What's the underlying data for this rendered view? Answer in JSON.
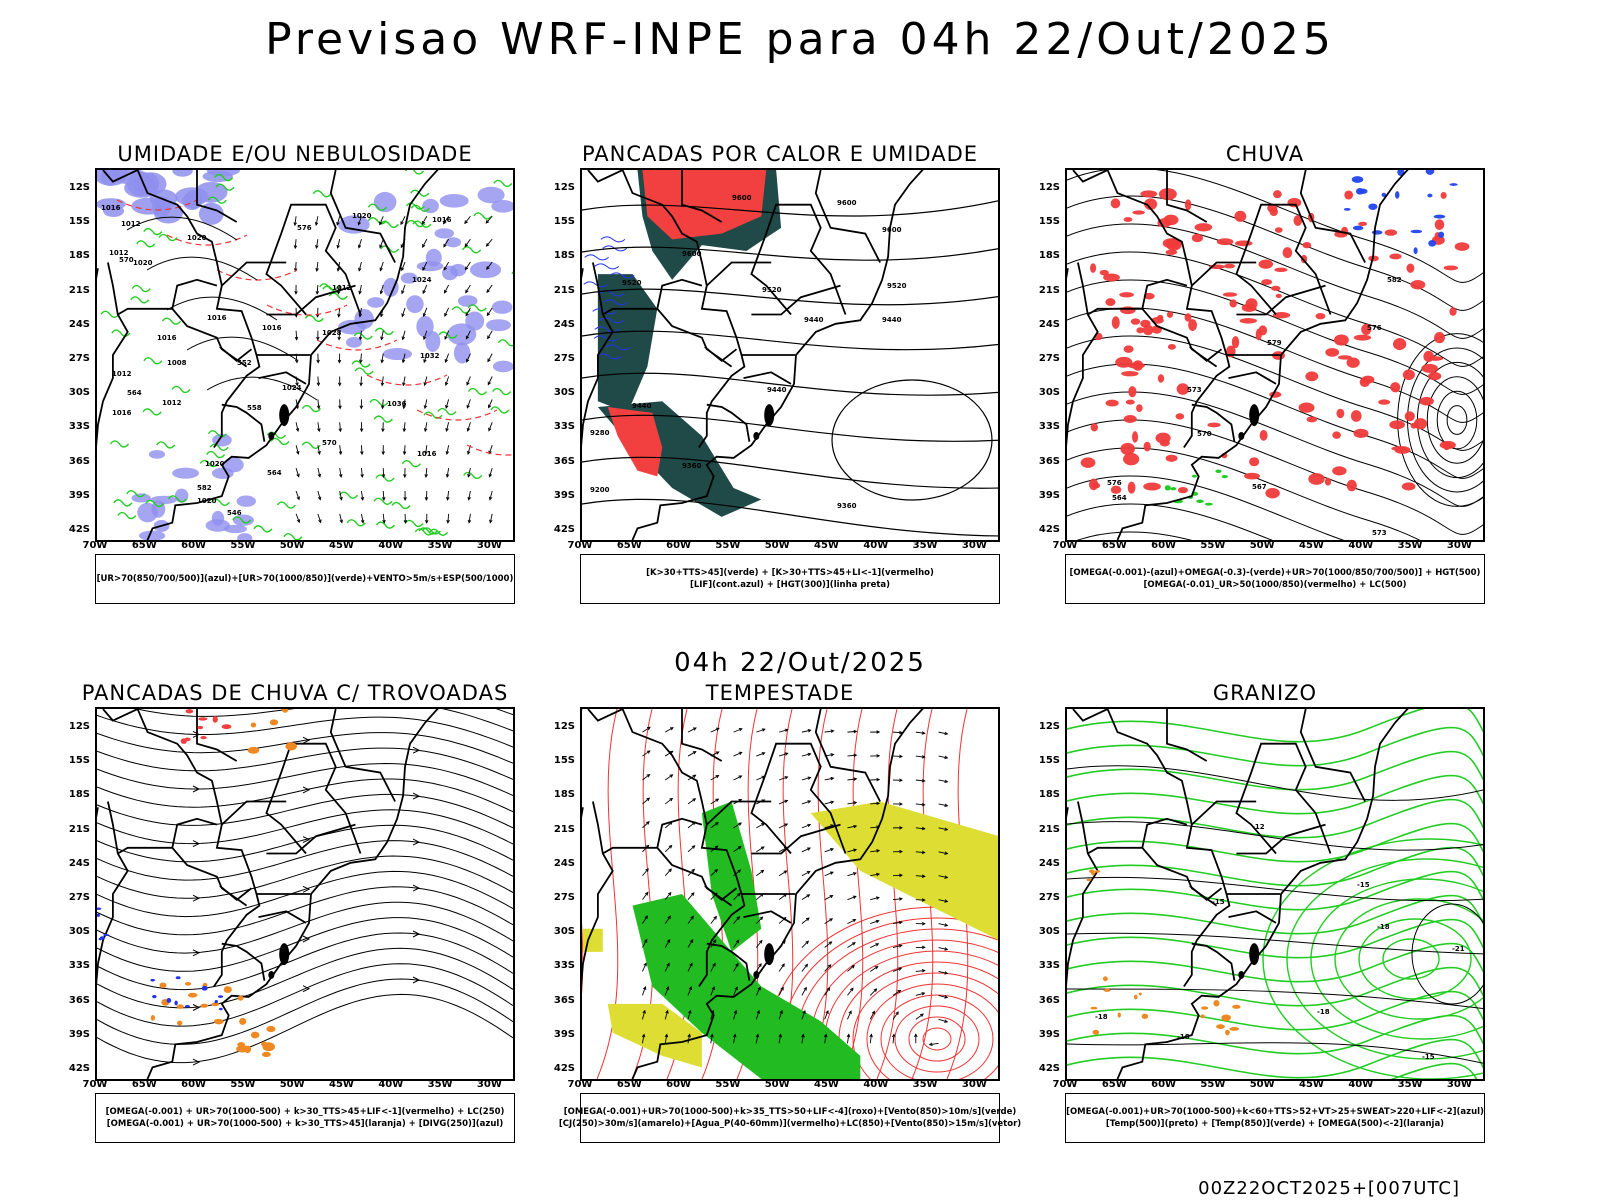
{
  "header": {
    "title": "Previsao WRF-INPE  para 04h 22/Out/2025"
  },
  "middle": {
    "title": "04h 22/Out/2025"
  },
  "footer": {
    "stamp": "00Z22OCT2025+[007UTC]"
  },
  "axes": {
    "lat_labels": [
      "12S",
      "15S",
      "18S",
      "21S",
      "24S",
      "27S",
      "30S",
      "33S",
      "36S",
      "39S",
      "42S"
    ],
    "lon_labels": [
      "70W",
      "65W",
      "60W",
      "55W",
      "50W",
      "45W",
      "40W",
      "35W",
      "30W"
    ]
  },
  "panels": [
    {
      "title": "UMIDADE E/OU NEBULOSIDADE",
      "legend": [
        "[UR>70(850/700/500)](azul)+[UR>70(1000/850)](verde)+VENTO>5m/s+ESP(500/1000)"
      ],
      "contour_labels": [
        "1016",
        "1012",
        "1020",
        "1012",
        "1020",
        "1016",
        "1016",
        "1016",
        "1020",
        "1016",
        "1012",
        "1024",
        "1008",
        "1012",
        "1012",
        "1016",
        "1020",
        "1024",
        "1028",
        "1032",
        "1036",
        "1016",
        "1020",
        "570",
        "576",
        "564",
        "582",
        "558",
        "552",
        "546",
        "564",
        "570"
      ]
    },
    {
      "title": "PANCADAS POR CALOR E UMIDADE",
      "legend": [
        "[K>30+TTS>45](verde) + [K>30+TTS>45+LI<-1](vermelho)",
        "[LIF](cont.azul) + [HGT(300)](linha preta)"
      ],
      "contour_labels": [
        "9600",
        "9600",
        "9600",
        "9600",
        "9520",
        "9520",
        "9520",
        "9440",
        "9440",
        "9440",
        "9440",
        "9360",
        "9360",
        "9280",
        "9200"
      ]
    },
    {
      "title": "CHUVA",
      "legend": [
        "[OMEGA(-0.001)-(azul)+OMEGA(-0.3)-(verde)+UR>70(1000/850/700/500)] + HGT(500)",
        "[OMEGA(-0.01)_UR>50(1000/850)(vermelho) + LC(500)"
      ],
      "contour_labels": [
        "582",
        "579",
        "576",
        "573",
        "570",
        "567",
        "564",
        "576",
        "573"
      ]
    },
    {
      "title": "PANCADAS DE CHUVA C/ TROVOADAS",
      "legend": [
        "[OMEGA(-0.001) + UR>70(1000-500) + k>30_TTS>45+LIF<-1](vermelho) + LC(250)",
        "[OMEGA(-0.001) + UR>70(1000-500) + k>30_TTS>45](laranja) + [DIVG(250)](azul)"
      ],
      "contour_labels": []
    },
    {
      "title": "TEMPESTADE",
      "legend": [
        "[OMEGA(-0.001)+UR>70(1000-500)+k>35_TTS>50+LIF<-4](roxo)+[Vento(850)>10m/s](verde)",
        "[CJ(250)>30m/s](amarelo)+[Agua_P(40-60mm)](vermelho)+LC(850)+[Vento(850)>15m/s](vetor)"
      ],
      "contour_labels": []
    },
    {
      "title": "GRANIZO",
      "legend": [
        "[OMEGA(-0.001)+UR>70(1000-500)+k<60+TTS>52+VT>25+SWEAT>220+LIF<-2](azul)",
        "[Temp(500)](preto) + [Temp(850)](verde) + [OMEGA(500)<-2](laranja)"
      ],
      "contour_labels": [
        "-12",
        "-15",
        "-15",
        "-18",
        "-18",
        "-21",
        "-18",
        "-18",
        "-15"
      ]
    }
  ],
  "colors": {
    "humidity_upper": "#8f8fef",
    "humidity_lower": "#22cc22",
    "heat_green": "#1f4a48",
    "heat_red": "#f24040",
    "lif_blue": "#2233ee",
    "rain_red": "#f03a3a",
    "rain_blue": "#2244ee",
    "storm_purple": "#7722aa",
    "storm_green": "#22bb22",
    "jet_yellow": "#dddd33",
    "water_red": "#ee3333",
    "hail_orange": "#ee8822",
    "temp850_green": "#22cc22"
  }
}
